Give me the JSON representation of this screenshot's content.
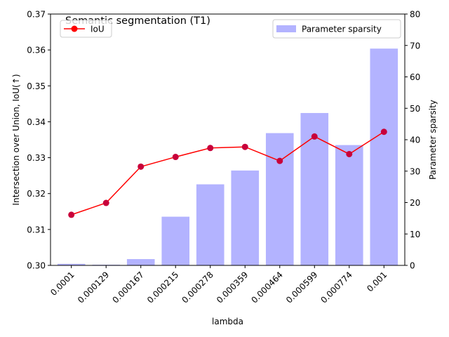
{
  "chart_data": {
    "type": "bar+line",
    "title": "Semantic segmentation (T1)",
    "xlabel": "lambda",
    "ylabel_left": "Intersection over Union, IoU(↑)",
    "ylabel_right": "Parameter sparsity",
    "categories": [
      "0.0001",
      "0.000129",
      "0.000167",
      "0.000215",
      "0.000278",
      "0.000359",
      "0.000464",
      "0.000599",
      "0.000774",
      "0.001"
    ],
    "ylim_left": [
      0.3,
      0.37
    ],
    "yticks_left": [
      "0.30",
      "0.31",
      "0.32",
      "0.33",
      "0.34",
      "0.35",
      "0.36",
      "0.37"
    ],
    "ylim_right": [
      0,
      80
    ],
    "yticks_right": [
      "0",
      "10",
      "20",
      "30",
      "40",
      "50",
      "60",
      "70",
      "80"
    ],
    "grid": false,
    "series": [
      {
        "name": "IoU",
        "kind": "line",
        "axis": "left",
        "color": "#ff0000",
        "values": [
          0.3141,
          0.3174,
          0.3275,
          0.3302,
          0.3327,
          0.333,
          0.3291,
          0.3359,
          0.331,
          0.3372
        ]
      },
      {
        "name": "Parameter sparsity",
        "kind": "bar",
        "axis": "right",
        "color": "#b3b3ff",
        "values": [
          0.5,
          0.2,
          2.0,
          15.5,
          25.8,
          30.2,
          42.1,
          48.5,
          38.3,
          69.0
        ]
      }
    ],
    "legends": {
      "line_placement": "top-left",
      "bar_placement": "top-right"
    }
  }
}
